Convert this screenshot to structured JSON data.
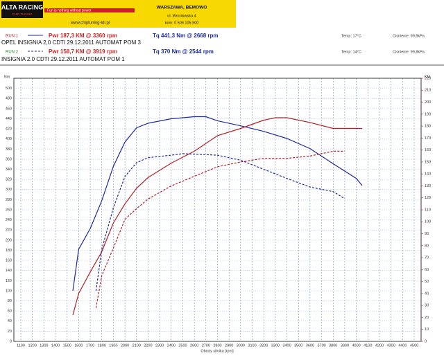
{
  "header": {
    "logo": "ALTA RACING",
    "logo_sub": "CHIP TUNING",
    "slogan": "Fun is nothing without power",
    "url": "www.chiptuning-tdi.pl",
    "city": "WARSZAWA, BEMOWO",
    "street": "ul. Wrocławska 4",
    "phone": "kom: 0 506 105 900"
  },
  "runs": [
    {
      "run": "RUN 1",
      "power": "Pwr 187,3 KM @ 3360 rpm",
      "torque": "Tq 441,3 Nm @ 2668 rpm",
      "temp": "Temp: 17°C",
      "pressure": "Cisnienie: 99,5kPa",
      "car": "OPEL INSIGNIA  2,0 CDTI  29.12.2011  AUTOMAT POM 3"
    },
    {
      "run": "RUN 2",
      "power": "Pwr 158,7 KM @ 3919 rpm",
      "torque": "Tq 370 Nm @ 2544 rpm",
      "temp": "Temp: 14°C",
      "pressure": "Cisnienie: 99,8kPa",
      "car": "INSIGNIA  2.0 CDTI  29.12.2011  AUTOMAT POM 1"
    }
  ],
  "chart_data": {
    "type": "line",
    "ylabel": "Nm",
    "y2label": "KM",
    "xlabel": "Obroty silnika [rpm]",
    "xlim": [
      1040,
      4560
    ],
    "xticks": [
      1100,
      1200,
      1300,
      1400,
      1500,
      1600,
      1700,
      1800,
      1900,
      2000,
      2100,
      2200,
      2300,
      2400,
      2500,
      2600,
      2700,
      2800,
      2900,
      3000,
      3100,
      3200,
      3300,
      3400,
      3500,
      3600,
      3700,
      3800,
      3900,
      4000,
      4100,
      4200,
      4300,
      4400,
      4500
    ],
    "ylim": [
      0,
      520
    ],
    "yticks": [
      0,
      20,
      40,
      60,
      80,
      100,
      120,
      140,
      160,
      180,
      200,
      220,
      240,
      260,
      280,
      300,
      320,
      340,
      360,
      380,
      400,
      420,
      440,
      460,
      480,
      500
    ],
    "y2lim": [
      0,
      220
    ],
    "y2ticks": [
      0,
      10,
      20,
      30,
      40,
      50,
      60,
      70,
      80,
      90,
      100,
      110,
      120,
      130,
      140,
      150,
      160,
      170,
      180,
      190,
      200,
      210,
      220
    ],
    "grid": true,
    "series": [
      {
        "name": "RUN 1 Tq",
        "color": "#1c2a9c",
        "dash": false,
        "x": [
          1550,
          1600,
          1700,
          1800,
          1900,
          2000,
          2100,
          2200,
          2400,
          2600,
          2700,
          2800,
          3000,
          3200,
          3400,
          3600,
          3800,
          4000,
          4050
        ],
        "values": [
          100,
          182,
          223,
          278,
          346,
          394,
          422,
          431,
          440,
          444,
          444,
          436,
          426,
          415,
          401,
          381,
          351,
          322,
          308
        ]
      },
      {
        "name": "RUN 1 Pwr",
        "color": "#b02020",
        "dash": false,
        "axis": "y2",
        "x": [
          1550,
          1600,
          1700,
          1800,
          1900,
          2000,
          2100,
          2200,
          2400,
          2600,
          2800,
          3000,
          3200,
          3300,
          3400,
          3600,
          3800,
          4050
        ],
        "values": [
          22,
          40,
          58,
          75,
          99,
          115,
          128,
          137,
          149,
          159,
          172,
          178,
          185,
          187,
          187,
          183,
          178,
          178
        ]
      },
      {
        "name": "RUN 2 Tq",
        "color": "#1c2a9c",
        "dash": true,
        "x": [
          1750,
          1800,
          1900,
          2000,
          2100,
          2200,
          2400,
          2500,
          2600,
          2800,
          3000,
          3200,
          3400,
          3600,
          3800,
          3900
        ],
        "values": [
          100,
          182,
          264,
          326,
          353,
          363,
          368,
          371,
          370,
          368,
          358,
          340,
          322,
          305,
          296,
          282
        ]
      },
      {
        "name": "RUN 2 Pwr",
        "color": "#b02020",
        "dash": true,
        "axis": "y2",
        "x": [
          1750,
          1800,
          1900,
          2000,
          2100,
          2200,
          2400,
          2600,
          2800,
          3000,
          3200,
          3400,
          3600,
          3800,
          3900
        ],
        "values": [
          28,
          55,
          78,
          102,
          111,
          119,
          130,
          138,
          146,
          150,
          153,
          153,
          155,
          159,
          159
        ]
      }
    ]
  }
}
